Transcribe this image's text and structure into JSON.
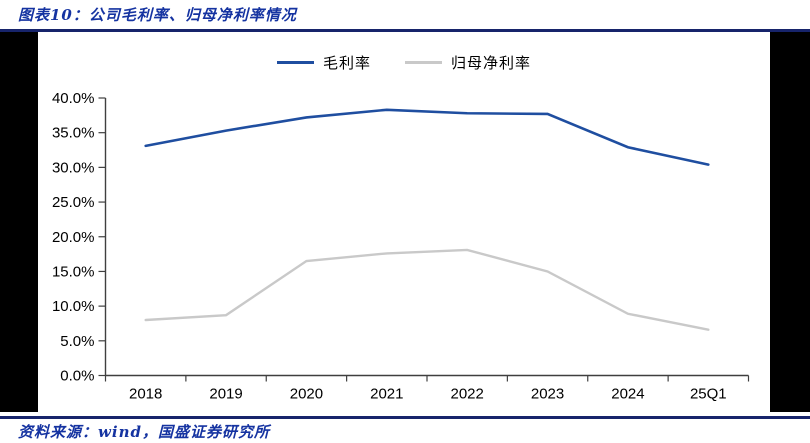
{
  "header": {
    "title": "图表10：公司毛利率、归母净利率情况"
  },
  "footer": {
    "source": "资料来源：wind，国盛证券研究所"
  },
  "colors": {
    "accent_blue": "#1533A1",
    "rule_navy": "#17246B",
    "side_bar": "#000000",
    "axis": "#3F3F3F",
    "tick_text": "#000000"
  },
  "chart_data": {
    "type": "line",
    "title": "",
    "xlabel": "",
    "ylabel": "",
    "categories": [
      "2018",
      "2019",
      "2020",
      "2021",
      "2022",
      "2023",
      "2024",
      "25Q1"
    ],
    "series": [
      {
        "key": "gross-margin",
        "name": "毛利率",
        "color": "#1F4EA0",
        "width": 2.6,
        "values": [
          33.1,
          35.3,
          37.2,
          38.3,
          37.8,
          37.7,
          32.9,
          30.4
        ]
      },
      {
        "key": "net-profit-margin",
        "name": "归母净利率",
        "color": "#C9C9C9",
        "width": 2.4,
        "values": [
          8.0,
          8.7,
          16.5,
          17.6,
          18.1,
          15.0,
          8.9,
          6.6
        ]
      }
    ],
    "ylim": [
      0,
      40
    ],
    "ytick_step": 5,
    "ytick_labels": [
      "0.0%",
      "5.0%",
      "10.0%",
      "15.0%",
      "20.0%",
      "25.0%",
      "30.0%",
      "35.0%",
      "40.0%"
    ],
    "grid": false,
    "legend_position": "top-center"
  }
}
